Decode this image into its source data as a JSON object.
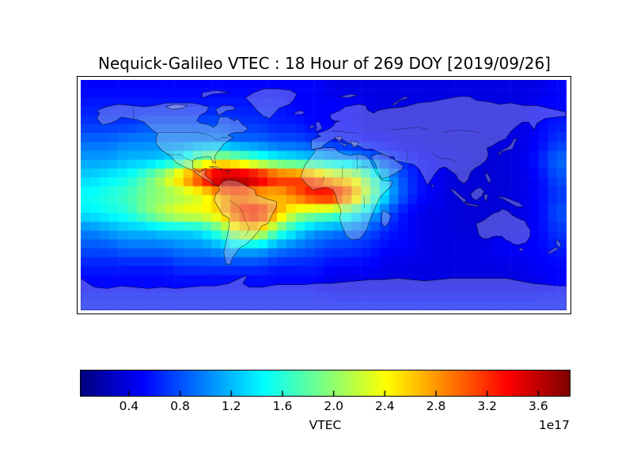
{
  "title": "Nequick-Galileo VTEC : 18 Hour of 269 DOY [2019/09/26]",
  "colorbar": {
    "label": "VTEC",
    "offset_label": "1e17",
    "tick_labels": [
      "0.4",
      "0.8",
      "1.2",
      "1.6",
      "2.0",
      "2.4",
      "2.8",
      "3.2",
      "3.6"
    ],
    "ticks": [
      0.4,
      0.8,
      1.2,
      1.6,
      2.0,
      2.4,
      2.8,
      3.2,
      3.6
    ],
    "vmin": 0.023,
    "vmax": 3.845,
    "colormap": "jet",
    "border_color": "#000000"
  },
  "chart_data": {
    "type": "heatmap",
    "title": "Nequick-Galileo VTEC : 18 Hour of 269 DOY [2019/09/26]",
    "model": "Nequick-Galileo",
    "hour": 18,
    "doy": 269,
    "date": "2019/09/26",
    "value_label": "VTEC",
    "value_scale": 1e+17,
    "colormap": "jet",
    "vmin": 0.023,
    "vmax": 3.845,
    "projection": "equirectangular",
    "lon_range": [
      -180,
      180
    ],
    "lat_range": [
      -90,
      90
    ],
    "grid_lons": [
      -173.1,
      -159.2,
      -145.4,
      -131.5,
      -117.7,
      -103.8,
      -90.0,
      -76.2,
      -62.3,
      -48.5,
      -34.6,
      -20.8,
      -6.9,
      6.9,
      20.8,
      34.6,
      48.5,
      62.3,
      76.2,
      90.0,
      103.8,
      117.7,
      131.5,
      145.4,
      159.2,
      173.1
    ],
    "grid_lats": [
      83.1,
      69.2,
      55.4,
      41.5,
      27.7,
      13.8,
      0.0,
      -13.8,
      -27.7,
      -41.5,
      -55.4,
      -69.2,
      -83.1
    ],
    "values": [
      [
        0.5,
        0.5,
        0.5,
        0.5,
        0.5,
        0.5,
        0.5,
        0.5,
        0.5,
        0.5,
        0.5,
        0.5,
        0.5,
        0.4,
        0.4,
        0.4,
        0.4,
        0.4,
        0.4,
        0.4,
        0.4,
        0.4,
        0.4,
        0.4,
        0.4,
        0.5
      ],
      [
        0.6,
        0.6,
        0.6,
        0.6,
        0.6,
        0.6,
        0.6,
        0.6,
        0.6,
        0.6,
        0.6,
        0.5,
        0.5,
        0.5,
        0.5,
        0.4,
        0.4,
        0.4,
        0.4,
        0.4,
        0.4,
        0.4,
        0.4,
        0.4,
        0.5,
        0.5
      ],
      [
        0.7,
        0.7,
        0.7,
        0.8,
        0.8,
        0.8,
        0.8,
        0.8,
        0.7,
        0.7,
        0.6,
        0.6,
        0.5,
        0.5,
        0.5,
        0.4,
        0.4,
        0.4,
        0.4,
        0.4,
        0.4,
        0.4,
        0.4,
        0.4,
        0.5,
        0.6
      ],
      [
        0.9,
        0.9,
        1.0,
        1.0,
        1.0,
        1.0,
        1.0,
        1.0,
        0.9,
        0.9,
        0.8,
        0.8,
        0.7,
        0.6,
        0.6,
        0.5,
        0.5,
        0.4,
        0.4,
        0.35,
        0.35,
        0.35,
        0.4,
        0.4,
        0.5,
        0.7
      ],
      [
        1.1,
        1.1,
        1.2,
        1.2,
        1.3,
        1.5,
        2.0,
        2.2,
        2.0,
        1.7,
        1.5,
        1.4,
        1.3,
        1.2,
        1.1,
        0.9,
        0.7,
        0.6,
        0.5,
        0.45,
        0.4,
        0.35,
        0.35,
        0.4,
        0.6,
        0.9
      ],
      [
        1.3,
        1.4,
        1.5,
        1.8,
        2.2,
        2.8,
        3.4,
        3.9,
        3.9,
        3.7,
        3.3,
        3.2,
        3.0,
        2.5,
        2.4,
        1.8,
        1.1,
        0.7,
        0.5,
        0.4,
        0.35,
        0.35,
        0.35,
        0.4,
        0.5,
        0.8
      ],
      [
        1.5,
        1.6,
        1.7,
        1.9,
        2.0,
        2.1,
        2.3,
        2.7,
        2.9,
        2.6,
        2.6,
        3.0,
        3.4,
        3.5,
        3.0,
        2.0,
        1.2,
        0.7,
        0.5,
        0.4,
        0.35,
        0.35,
        0.35,
        0.4,
        0.5,
        0.7
      ],
      [
        1.4,
        1.5,
        1.6,
        1.9,
        2.2,
        2.4,
        2.4,
        2.6,
        3.2,
        3.4,
        2.8,
        2.2,
        2.0,
        1.9,
        1.6,
        1.2,
        0.8,
        0.5,
        0.4,
        0.4,
        0.35,
        0.35,
        0.35,
        0.4,
        0.5,
        0.8
      ],
      [
        1.0,
        1.1,
        1.2,
        1.2,
        1.3,
        1.3,
        1.4,
        1.8,
        2.4,
        2.5,
        1.8,
        1.4,
        1.1,
        1.0,
        0.9,
        0.8,
        0.6,
        0.5,
        0.4,
        0.4,
        0.35,
        0.35,
        0.4,
        0.4,
        0.5,
        0.7
      ],
      [
        0.8,
        0.8,
        0.9,
        0.9,
        0.9,
        1.0,
        1.0,
        1.1,
        1.2,
        1.2,
        1.0,
        0.9,
        0.8,
        0.7,
        0.7,
        0.6,
        0.5,
        0.5,
        0.4,
        0.4,
        0.4,
        0.4,
        0.5,
        0.5,
        0.5,
        0.6
      ],
      [
        0.6,
        0.6,
        0.6,
        0.6,
        0.6,
        0.7,
        0.7,
        0.7,
        0.7,
        0.7,
        0.6,
        0.6,
        0.6,
        0.5,
        0.5,
        0.5,
        0.4,
        0.4,
        0.4,
        0.4,
        0.4,
        0.4,
        0.4,
        0.4,
        0.5,
        0.5
      ],
      [
        0.5,
        0.5,
        0.5,
        0.5,
        0.5,
        0.5,
        0.5,
        0.5,
        0.5,
        0.5,
        0.5,
        0.5,
        0.5,
        0.4,
        0.4,
        0.4,
        0.4,
        0.4,
        0.4,
        0.4,
        0.4,
        0.4,
        0.4,
        0.4,
        0.4,
        0.5
      ],
      [
        0.6,
        0.6,
        0.6,
        0.6,
        0.6,
        0.6,
        0.6,
        0.6,
        0.6,
        0.6,
        0.6,
        0.6,
        0.6,
        0.6,
        0.6,
        0.6,
        0.6,
        0.6,
        0.6,
        0.6,
        0.6,
        0.6,
        0.6,
        0.6,
        0.6,
        0.6
      ]
    ]
  },
  "figure": {
    "background": "#ffffff"
  }
}
